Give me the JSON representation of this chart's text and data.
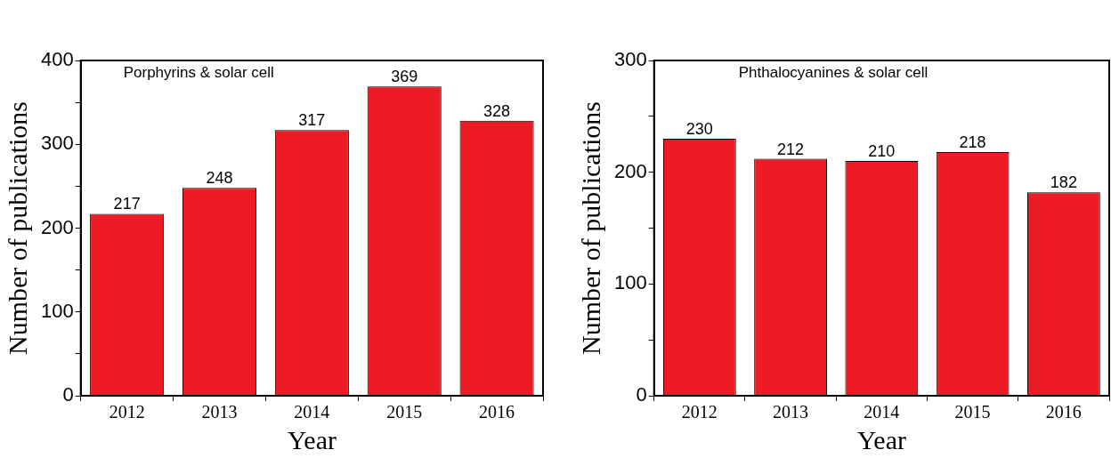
{
  "chart_data": [
    {
      "type": "bar",
      "title": "Porphyrins & solar cell",
      "xlabel": "Year",
      "ylabel": "Number of publications",
      "categories": [
        "2012",
        "2013",
        "2014",
        "2015",
        "2016"
      ],
      "values": [
        217,
        248,
        317,
        369,
        328
      ],
      "color": "#ed1c24",
      "ylim": [
        0,
        400
      ],
      "yticks": [
        0,
        {
          "value": 50,
          "label": null
        },
        100,
        {
          "value": 150,
          "label": null
        },
        200,
        {
          "value": 250,
          "label": null
        },
        300,
        {
          "value": 350,
          "label": null
        },
        400
      ],
      "grid": false,
      "legend": false,
      "data_labels": true
    },
    {
      "type": "bar",
      "title": "Phthalocyanines & solar cell",
      "xlabel": "Year",
      "ylabel": "Number of publications",
      "categories": [
        "2012",
        "2013",
        "2014",
        "2015",
        "2016"
      ],
      "values": [
        230,
        212,
        210,
        218,
        182
      ],
      "color": "#ed1c24",
      "ylim": [
        0,
        300
      ],
      "yticks": [
        0,
        {
          "value": 50,
          "label": null
        },
        100,
        {
          "value": 150,
          "label": null
        },
        200,
        {
          "value": 250,
          "label": null
        },
        300
      ],
      "grid": false,
      "legend": false,
      "data_labels": true
    }
  ]
}
